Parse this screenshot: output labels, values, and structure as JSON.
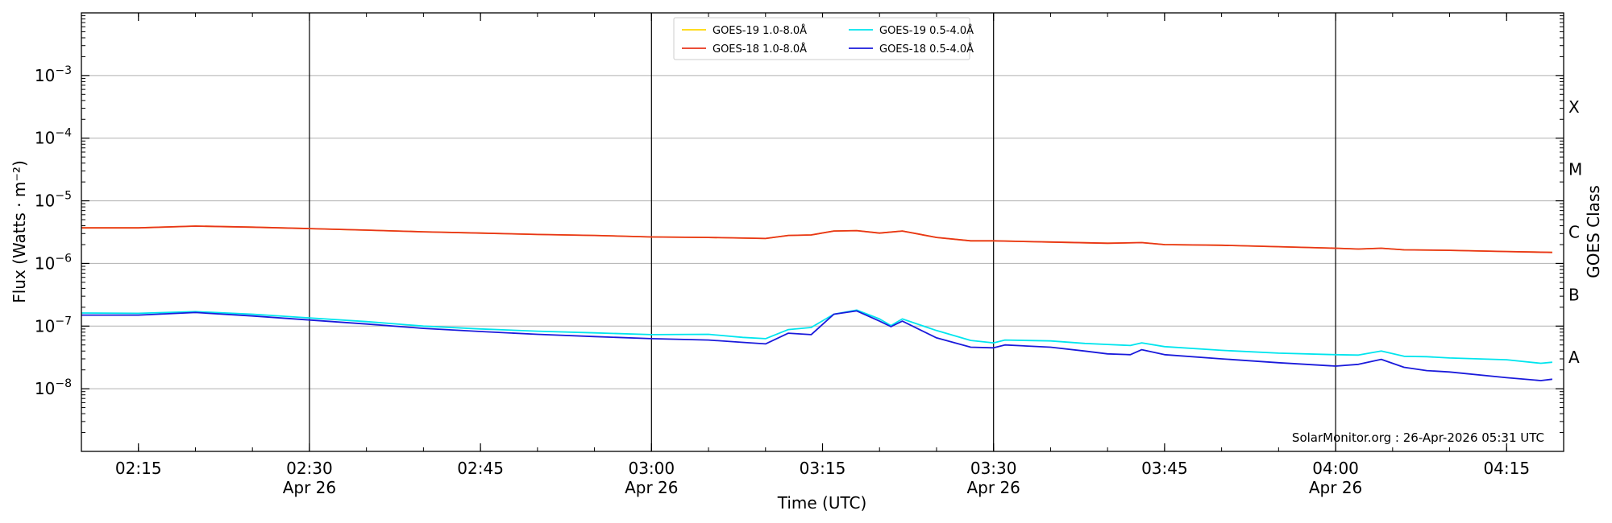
{
  "chart_data": {
    "type": "line",
    "xlabel": "Time (UTC)",
    "ylabel": "Flux (Watts · m⁻²)",
    "y2label": "GOES Class",
    "y_scale": "log",
    "ylim": [
      1e-09,
      0.01
    ],
    "xlim": [
      "02:10",
      "04:20"
    ],
    "grid": "horizontal at major decades",
    "legend_position": "top-center",
    "credit": "SolarMonitor.org : 26-Apr-2026 05:31 UTC",
    "x_ticks": [
      {
        "time": "02:15",
        "label": "02:15",
        "date": ""
      },
      {
        "time": "02:30",
        "label": "02:30",
        "date": "Apr 26"
      },
      {
        "time": "02:45",
        "label": "02:45",
        "date": ""
      },
      {
        "time": "03:00",
        "label": "03:00",
        "date": "Apr 26"
      },
      {
        "time": "03:15",
        "label": "03:15",
        "date": ""
      },
      {
        "time": "03:30",
        "label": "03:30",
        "date": "Apr 26"
      },
      {
        "time": "03:45",
        "label": "03:45",
        "date": ""
      },
      {
        "time": "04:00",
        "label": "04:00",
        "date": "Apr 26"
      },
      {
        "time": "04:15",
        "label": "04:15",
        "date": ""
      }
    ],
    "vertical_lines": [
      "02:30",
      "03:00",
      "03:30",
      "04:00"
    ],
    "y_ticks": [
      {
        "value": 0.001,
        "base": "10",
        "exp": "−3"
      },
      {
        "value": 0.0001,
        "base": "10",
        "exp": "−4"
      },
      {
        "value": 1e-05,
        "base": "10",
        "exp": "−5"
      },
      {
        "value": 1e-06,
        "base": "10",
        "exp": "−6"
      },
      {
        "value": 1e-07,
        "base": "10",
        "exp": "−7"
      },
      {
        "value": 1e-08,
        "base": "10",
        "exp": "−8"
      }
    ],
    "goes_classes": [
      {
        "label": "X",
        "value": 0.000316
      },
      {
        "label": "M",
        "value": 3.16e-05
      },
      {
        "label": "C",
        "value": 3.16e-06
      },
      {
        "label": "B",
        "value": 3.16e-07
      },
      {
        "label": "A",
        "value": 3.16e-08
      }
    ],
    "series": [
      {
        "name": "GOES-19 1.0-8.0Å",
        "color": "#ffd700",
        "x": [
          "02:10",
          "02:15",
          "02:20",
          "02:25",
          "02:30",
          "02:35",
          "02:40",
          "02:45",
          "02:50",
          "02:55",
          "03:00",
          "03:05",
          "03:10",
          "03:12",
          "03:14",
          "03:16",
          "03:18",
          "03:20",
          "03:22",
          "03:25",
          "03:28",
          "03:30",
          "03:35",
          "03:40",
          "03:43",
          "03:45",
          "03:50",
          "03:55",
          "04:00",
          "04:02",
          "04:04",
          "04:06",
          "04:10",
          "04:15",
          "04:19"
        ],
        "y": [
          3.7e-06,
          3.7e-06,
          3.95e-06,
          3.8e-06,
          3.6e-06,
          3.4e-06,
          3.2e-06,
          3.05e-06,
          2.9e-06,
          2.8e-06,
          2.65e-06,
          2.6e-06,
          2.5e-06,
          2.8e-06,
          2.85e-06,
          3.3e-06,
          3.35e-06,
          3.05e-06,
          3.3e-06,
          2.6e-06,
          2.3e-06,
          2.3e-06,
          2.2e-06,
          2.1e-06,
          2.15e-06,
          2e-06,
          1.95e-06,
          1.85e-06,
          1.75e-06,
          1.7e-06,
          1.75e-06,
          1.65e-06,
          1.62e-06,
          1.55e-06,
          1.5e-06
        ]
      },
      {
        "name": "GOES-18 1.0-8.0Å",
        "color": "#e8341c",
        "x": [
          "02:10",
          "02:15",
          "02:20",
          "02:25",
          "02:30",
          "02:35",
          "02:40",
          "02:45",
          "02:50",
          "02:55",
          "03:00",
          "03:05",
          "03:10",
          "03:12",
          "03:14",
          "03:16",
          "03:18",
          "03:20",
          "03:22",
          "03:25",
          "03:28",
          "03:30",
          "03:35",
          "03:40",
          "03:43",
          "03:45",
          "03:50",
          "03:55",
          "04:00",
          "04:02",
          "04:04",
          "04:06",
          "04:10",
          "04:15",
          "04:19"
        ],
        "y": [
          3.7e-06,
          3.7e-06,
          3.95e-06,
          3.8e-06,
          3.6e-06,
          3.4e-06,
          3.2e-06,
          3.05e-06,
          2.9e-06,
          2.8e-06,
          2.65e-06,
          2.6e-06,
          2.5e-06,
          2.8e-06,
          2.85e-06,
          3.3e-06,
          3.35e-06,
          3.05e-06,
          3.3e-06,
          2.6e-06,
          2.3e-06,
          2.3e-06,
          2.2e-06,
          2.1e-06,
          2.15e-06,
          2e-06,
          1.95e-06,
          1.85e-06,
          1.75e-06,
          1.7e-06,
          1.75e-06,
          1.65e-06,
          1.62e-06,
          1.55e-06,
          1.5e-06
        ]
      },
      {
        "name": "GOES-19 0.5-4.0Å",
        "color": "#00e5ee",
        "x": [
          "02:10",
          "02:15",
          "02:20",
          "02:25",
          "02:30",
          "02:35",
          "02:40",
          "02:45",
          "02:50",
          "02:55",
          "03:00",
          "03:05",
          "03:08",
          "03:10",
          "03:12",
          "03:14",
          "03:16",
          "03:18",
          "03:20",
          "03:21",
          "03:22",
          "03:25",
          "03:28",
          "03:30",
          "03:31",
          "03:35",
          "03:38",
          "03:40",
          "03:42",
          "03:43",
          "03:45",
          "03:50",
          "03:55",
          "04:00",
          "04:02",
          "04:04",
          "04:06",
          "04:08",
          "04:10",
          "04:15",
          "04:18",
          "04:19"
        ],
        "y": [
          1.62e-07,
          1.6e-07,
          1.7e-07,
          1.55e-07,
          1.35e-07,
          1.18e-07,
          1e-07,
          9e-08,
          8.3e-08,
          7.8e-08,
          7.3e-08,
          7.4e-08,
          6.6e-08,
          6.3e-08,
          8.8e-08,
          9.5e-08,
          1.55e-07,
          1.8e-07,
          1.3e-07,
          1.02e-07,
          1.3e-07,
          8.5e-08,
          5.9e-08,
          5.4e-08,
          6e-08,
          5.8e-08,
          5.3e-08,
          5.1e-08,
          4.9e-08,
          5.4e-08,
          4.7e-08,
          4.1e-08,
          3.7e-08,
          3.5e-08,
          3.45e-08,
          4e-08,
          3.3e-08,
          3.25e-08,
          3.1e-08,
          2.9e-08,
          2.55e-08,
          2.65e-08
        ]
      },
      {
        "name": "GOES-18 0.5-4.0Å",
        "color": "#1a1adb",
        "x": [
          "02:10",
          "02:15",
          "02:20",
          "02:25",
          "02:30",
          "02:35",
          "02:40",
          "02:45",
          "02:50",
          "02:55",
          "03:00",
          "03:05",
          "03:08",
          "03:10",
          "03:12",
          "03:14",
          "03:16",
          "03:18",
          "03:20",
          "03:21",
          "03:22",
          "03:25",
          "03:28",
          "03:30",
          "03:31",
          "03:35",
          "03:38",
          "03:40",
          "03:42",
          "03:43",
          "03:45",
          "03:50",
          "03:55",
          "04:00",
          "04:02",
          "04:04",
          "04:06",
          "04:08",
          "04:10",
          "04:15",
          "04:18",
          "04:19"
        ],
        "y": [
          1.5e-07,
          1.5e-07,
          1.65e-07,
          1.45e-07,
          1.25e-07,
          1.08e-07,
          9.2e-08,
          8.2e-08,
          7.4e-08,
          6.8e-08,
          6.3e-08,
          6e-08,
          5.5e-08,
          5.2e-08,
          7.7e-08,
          7.3e-08,
          1.55e-07,
          1.75e-07,
          1.2e-07,
          9.8e-08,
          1.2e-07,
          6.5e-08,
          4.6e-08,
          4.5e-08,
          5e-08,
          4.6e-08,
          4e-08,
          3.6e-08,
          3.5e-08,
          4.2e-08,
          3.5e-08,
          3e-08,
          2.6e-08,
          2.3e-08,
          2.45e-08,
          2.95e-08,
          2.2e-08,
          1.95e-08,
          1.85e-08,
          1.5e-08,
          1.35e-08,
          1.42e-08
        ]
      }
    ]
  }
}
